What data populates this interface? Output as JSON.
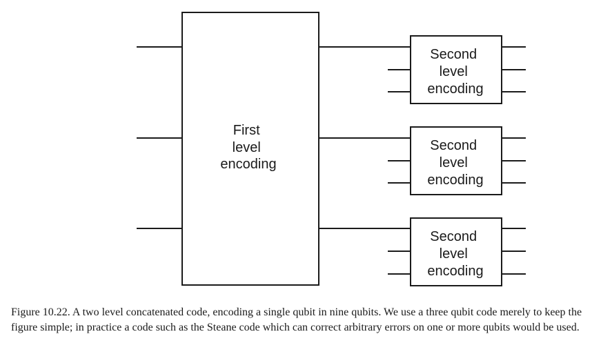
{
  "diagram": {
    "first_level": {
      "label_lines": [
        "First",
        "level",
        "encoding"
      ]
    },
    "second_level": [
      {
        "label_lines": [
          "Second",
          "level",
          "encoding"
        ]
      },
      {
        "label_lines": [
          "Second",
          "level",
          "encoding"
        ]
      },
      {
        "label_lines": [
          "Second",
          "level",
          "encoding"
        ]
      }
    ]
  },
  "caption": {
    "text": "Figure 10.22. A two level concatenated code, encoding a single qubit in nine qubits. We use a three qubit code merely to keep the figure simple; in practice a code such as the Steane code which can correct arbitrary errors on one or more qubits would be used."
  }
}
